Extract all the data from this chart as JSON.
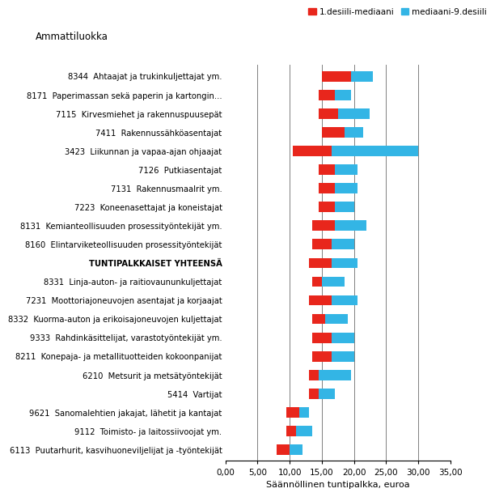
{
  "title": "Ammattiluokka",
  "xlabel": "Säännöllinen tuntipalkka, euroa",
  "legend_red": "1.desiili-mediaani",
  "legend_blue": "mediaani-9.desiili",
  "categories": [
    "8344  Ahtaajat ja trukinkuljettajat ym.",
    "8171  Paperimassan sekä paperin ja kartongin...",
    "7115  Kirvesmiehet ja rakennuspuusepät",
    "7411  Rakennussähköasentajat",
    "3423  Liikunnan ja vapaa-ajan ohjaajat",
    "7126  Putkiasentajat",
    "7131  Rakennusmaalrit ym.",
    "7223  Koneenasettajat ja koneistajat",
    "8131  Kemianteollisuuden prosessityöntekijät ym.",
    "8160  Elintarviketeollisuuden prosessityöntekijät",
    "TUNTIPALKKAISET YHTEENSÄ",
    "8331  Linja-auton- ja raitiovaununkuljettajat",
    "7231  Moottoriajoneuvojen asentajat ja korjaajat",
    "8332  Kuorma-auton ja erikoisajoneuvojen kuljettajat",
    "9333  Rahdinkäsittelijat, varastotyöntekijät ym.",
    "8211  Konepaja- ja metallituotteiden kokoonpanijat",
    "6210  Metsurit ja metsätyöntekijät",
    "5414  Vartijat",
    "9621  Sanomalehtien jakajat, lähetit ja kantajat",
    "9112  Toimisto- ja laitossiivoojat ym.",
    "6113  Puutarhurit, kasvihuoneviljelijat ja -työntekijät"
  ],
  "decile1": [
    15.0,
    14.5,
    14.5,
    15.0,
    10.5,
    14.5,
    14.5,
    14.5,
    13.5,
    13.5,
    13.0,
    13.5,
    13.0,
    13.5,
    13.5,
    13.5,
    13.0,
    13.0,
    9.5,
    9.5,
    8.0
  ],
  "median": [
    19.5,
    17.0,
    17.5,
    18.5,
    16.5,
    17.0,
    17.0,
    17.0,
    17.0,
    16.5,
    16.5,
    15.0,
    16.5,
    15.5,
    16.5,
    16.5,
    14.5,
    14.5,
    11.5,
    11.0,
    10.0
  ],
  "decile9": [
    23.0,
    19.5,
    22.5,
    21.5,
    30.0,
    20.5,
    20.5,
    20.0,
    22.0,
    20.0,
    20.5,
    18.5,
    20.5,
    19.0,
    20.0,
    20.0,
    19.5,
    17.0,
    13.0,
    13.5,
    12.0
  ],
  "xlim": [
    0,
    35
  ],
  "xticks": [
    0,
    5,
    10,
    15,
    20,
    25,
    30,
    35
  ],
  "xticklabels": [
    "0,00",
    "5,00",
    "10,00",
    "15,00",
    "20,00",
    "25,00",
    "30,00",
    "35,00"
  ],
  "color_red": "#e8261c",
  "color_blue": "#33b5e5",
  "bar_height": 0.55,
  "grid_color": "#808080",
  "bold_index": 10,
  "background_color": "#ffffff"
}
